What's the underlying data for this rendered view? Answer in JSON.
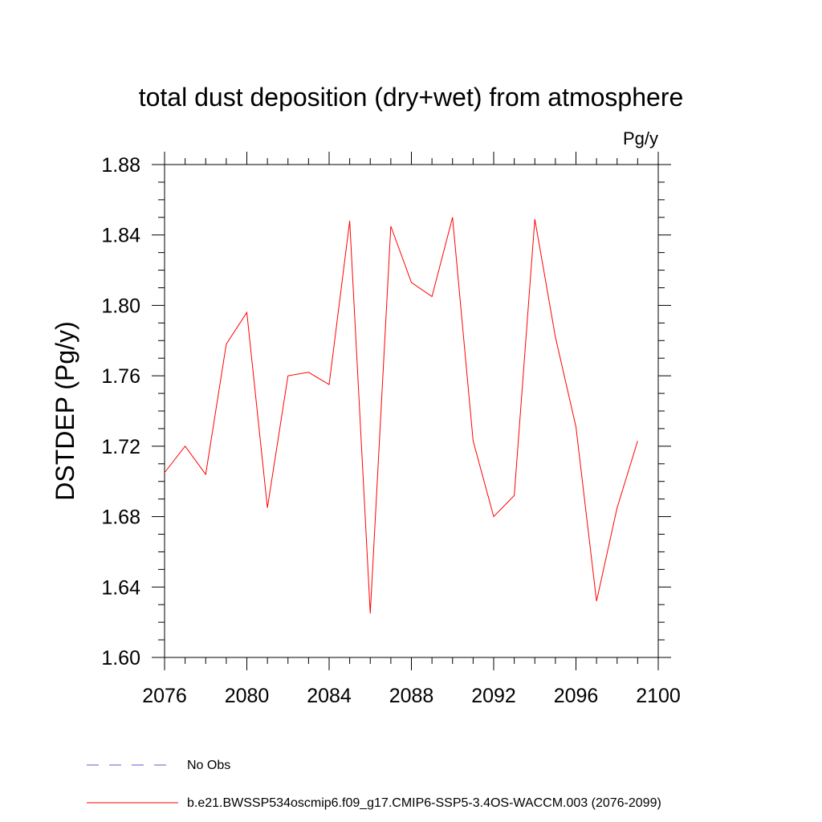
{
  "chart_data": {
    "type": "line",
    "title": "total dust deposition (dry+wet) from atmosphere",
    "units_label": "Pg/y",
    "ylabel": "DSTDEP  (Pg/y)",
    "xlabel": "",
    "xlim": [
      2076,
      2100
    ],
    "ylim": [
      1.6,
      1.88
    ],
    "xticks": [
      "2076",
      "2080",
      "2084",
      "2088",
      "2092",
      "2096",
      "2100"
    ],
    "yticks": [
      "1.60",
      "1.64",
      "1.68",
      "1.72",
      "1.76",
      "1.80",
      "1.84",
      "1.88"
    ],
    "grid": false,
    "legend_position": "bottom",
    "series": [
      {
        "name": "b.e21.BWSSP534oscmip6.f09_g17.CMIP6-SSP5-3.4OS-WACCM.003 (2076-2099)",
        "color": "#ff0000",
        "style": "solid",
        "x": [
          2076,
          2077,
          2078,
          2079,
          2080,
          2081,
          2082,
          2083,
          2084,
          2085,
          2086,
          2087,
          2088,
          2089,
          2090,
          2091,
          2092,
          2093,
          2094,
          2095,
          2096,
          2097,
          2098,
          2099
        ],
        "values": [
          1.705,
          1.72,
          1.704,
          1.778,
          1.796,
          1.685,
          1.76,
          1.762,
          1.755,
          1.848,
          1.625,
          1.845,
          1.813,
          1.805,
          1.85,
          1.723,
          1.68,
          1.692,
          1.849,
          1.782,
          1.731,
          1.632,
          1.685,
          1.723
        ]
      }
    ],
    "legend": [
      {
        "label": "No Obs",
        "color": "#6a5acd",
        "style": "dashed"
      },
      {
        "label": "b.e21.BWSSP534oscmip6.f09_g17.CMIP6-SSP5-3.4OS-WACCM.003 (2076-2099)",
        "color": "#ff0000",
        "style": "solid"
      }
    ]
  }
}
